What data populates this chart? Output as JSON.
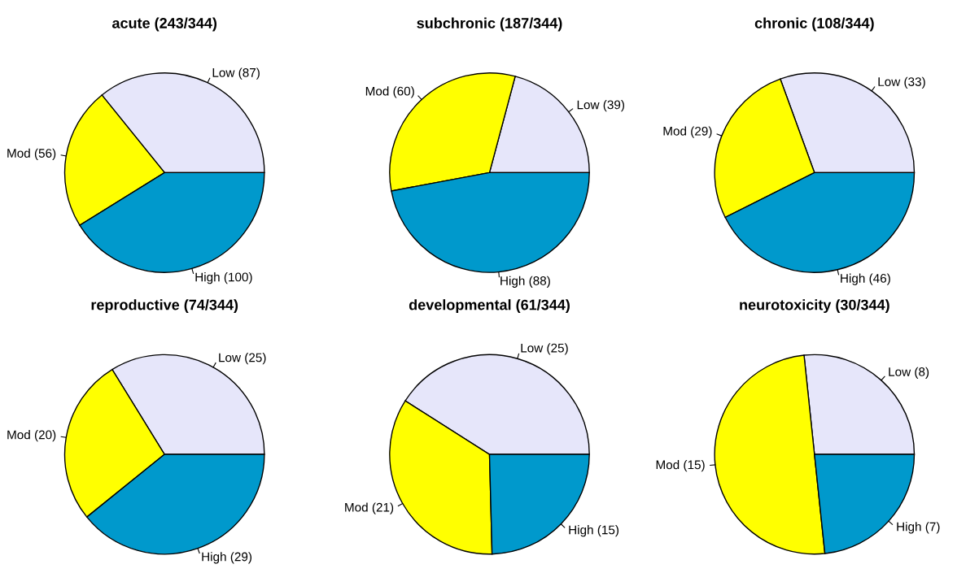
{
  "chart_data": [
    {
      "type": "pie",
      "title": "acute (243/344)",
      "categories": [
        "Low (87)",
        "Mod (56)",
        "High (100)"
      ],
      "values": [
        87,
        56,
        100
      ],
      "colors": [
        "#e6e6fa",
        "#ffff00",
        "#0099cc"
      ]
    },
    {
      "type": "pie",
      "title": "subchronic (187/344)",
      "categories": [
        "Low (39)",
        "Mod (60)",
        "High (88)"
      ],
      "values": [
        39,
        60,
        88
      ],
      "colors": [
        "#e6e6fa",
        "#ffff00",
        "#0099cc"
      ]
    },
    {
      "type": "pie",
      "title": "chronic (108/344)",
      "categories": [
        "Low (33)",
        "Mod (29)",
        "High (46)"
      ],
      "values": [
        33,
        29,
        46
      ],
      "colors": [
        "#e6e6fa",
        "#ffff00",
        "#0099cc"
      ]
    },
    {
      "type": "pie",
      "title": "reproductive (74/344)",
      "categories": [
        "Low (25)",
        "Mod (20)",
        "High (29)"
      ],
      "values": [
        25,
        20,
        29
      ],
      "colors": [
        "#e6e6fa",
        "#ffff00",
        "#0099cc"
      ]
    },
    {
      "type": "pie",
      "title": "developmental (61/344)",
      "categories": [
        "Low (25)",
        "Mod (21)",
        "High (15)"
      ],
      "values": [
        25,
        21,
        15
      ],
      "colors": [
        "#e6e6fa",
        "#ffff00",
        "#0099cc"
      ]
    },
    {
      "type": "pie",
      "title": "neurotoxicity (30/344)",
      "categories": [
        "Low (8)",
        "Mod (15)",
        "High (7)"
      ],
      "values": [
        8,
        15,
        7
      ],
      "colors": [
        "#e6e6fa",
        "#ffff00",
        "#0099cc"
      ]
    }
  ]
}
